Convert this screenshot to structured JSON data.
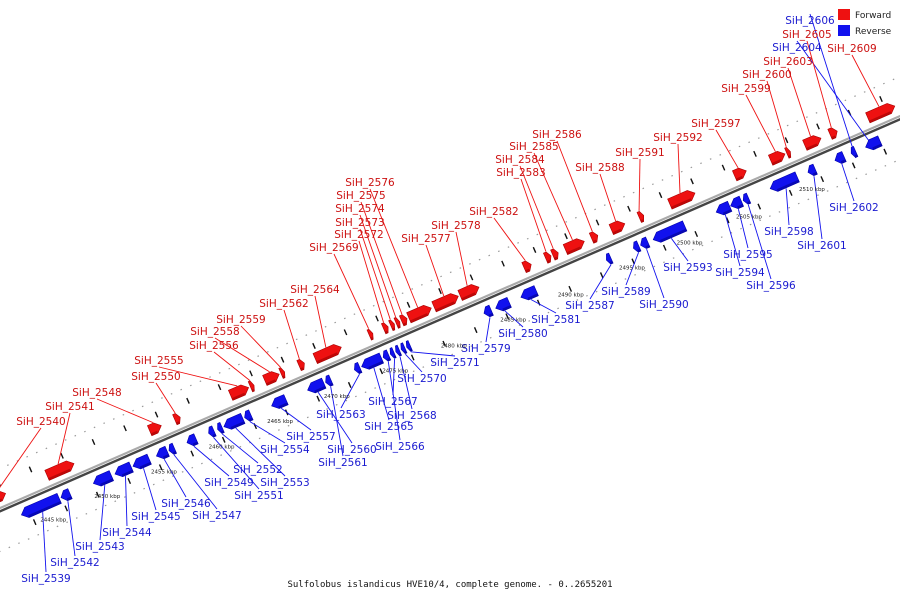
{
  "caption": "Sulfolobus islandicus HVE10/4, complete genome. - 0..2655201",
  "legend": [
    {
      "label": "Forward",
      "color": "#ee1111"
    },
    {
      "label": "Reverse",
      "color": "#1111ee"
    }
  ],
  "colors": {
    "forward": "#ee1111",
    "reverse": "#1111ee",
    "axis": "#777777"
  },
  "kbp_ticks": [
    {
      "label": "2445 kbp",
      "t": 0.045
    },
    {
      "label": "2450 kbp",
      "t": 0.105
    },
    {
      "label": "2455 kbp",
      "t": 0.168
    },
    {
      "label": "2460 kbp",
      "t": 0.232
    },
    {
      "label": "2465 kbp",
      "t": 0.297
    },
    {
      "label": "2470 kbp",
      "t": 0.36
    },
    {
      "label": "2475 kbp",
      "t": 0.425
    },
    {
      "label": "2480 kbp",
      "t": 0.49
    },
    {
      "label": "2485 kbp",
      "t": 0.556
    },
    {
      "label": "2490 kbp",
      "t": 0.62
    },
    {
      "label": "2495 kbp",
      "t": 0.688
    },
    {
      "label": "2500 kbp",
      "t": 0.752
    },
    {
      "label": "2505 kbp",
      "t": 0.818
    },
    {
      "label": "2510 kbp",
      "t": 0.888
    }
  ],
  "genes": [
    {
      "name": "SiH_2539",
      "strand": "reverse",
      "t1": 0.018,
      "t2": 0.06
    },
    {
      "name": "SiH_2540",
      "strand": "forward",
      "t1": 0.0,
      "t2": 0.012
    },
    {
      "name": "SiH_2541",
      "strand": "forward",
      "t1": 0.058,
      "t2": 0.088
    },
    {
      "name": "SiH_2542",
      "strand": "reverse",
      "t1": 0.062,
      "t2": 0.072
    },
    {
      "name": "SiH_2543",
      "strand": "reverse",
      "t1": 0.098,
      "t2": 0.118
    },
    {
      "name": "SiH_2544",
      "strand": "reverse",
      "t1": 0.122,
      "t2": 0.14
    },
    {
      "name": "SiH_2545",
      "strand": "reverse",
      "t1": 0.142,
      "t2": 0.16
    },
    {
      "name": "SiH_2546",
      "strand": "reverse",
      "t1": 0.168,
      "t2": 0.18
    },
    {
      "name": "SiH_2547",
      "strand": "reverse",
      "t1": 0.182,
      "t2": 0.188
    },
    {
      "name": "SiH_2548",
      "strand": "forward",
      "t1": 0.172,
      "t2": 0.185
    },
    {
      "name": "SiH_2549",
      "strand": "reverse",
      "t1": 0.202,
      "t2": 0.212
    },
    {
      "name": "SiH_2550",
      "strand": "forward",
      "t1": 0.2,
      "t2": 0.206
    },
    {
      "name": "SiH_2551",
      "strand": "reverse",
      "t1": 0.226,
      "t2": 0.232
    },
    {
      "name": "SiH_2552",
      "strand": "reverse",
      "t1": 0.236,
      "t2": 0.241
    },
    {
      "name": "SiH_2553",
      "strand": "reverse",
      "t1": 0.243,
      "t2": 0.264
    },
    {
      "name": "SiH_2554",
      "strand": "reverse",
      "t1": 0.266,
      "t2": 0.273
    },
    {
      "name": "SiH_2555",
      "strand": "forward",
      "t1": 0.262,
      "t2": 0.282
    },
    {
      "name": "SiH_2556",
      "strand": "forward",
      "t1": 0.284,
      "t2": 0.288
    },
    {
      "name": "SiH_2557",
      "strand": "reverse",
      "t1": 0.296,
      "t2": 0.312
    },
    {
      "name": "SiH_2558",
      "strand": "forward",
      "t1": 0.3,
      "t2": 0.316
    },
    {
      "name": "SiH_2559",
      "strand": "forward",
      "t1": 0.318,
      "t2": 0.322
    },
    {
      "name": "SiH_2560",
      "strand": "reverse",
      "t1": 0.336,
      "t2": 0.354
    },
    {
      "name": "SiH_2561",
      "strand": "reverse",
      "t1": 0.356,
      "t2": 0.362
    },
    {
      "name": "SiH_2562",
      "strand": "forward",
      "t1": 0.338,
      "t2": 0.344
    },
    {
      "name": "SiH_2563",
      "strand": "reverse",
      "t1": 0.388,
      "t2": 0.394
    },
    {
      "name": "SiH_2564",
      "strand": "forward",
      "t1": 0.356,
      "t2": 0.385
    },
    {
      "name": "SiH_2565",
      "strand": "reverse",
      "t1": 0.396,
      "t2": 0.418
    },
    {
      "name": "SiH_2566",
      "strand": "reverse",
      "t1": 0.42,
      "t2": 0.426
    },
    {
      "name": "SiH_2567",
      "strand": "reverse",
      "t1": 0.428,
      "t2": 0.432
    },
    {
      "name": "SiH_2568",
      "strand": "reverse",
      "t1": 0.434,
      "t2": 0.438
    },
    {
      "name": "SiH_2569",
      "strand": "forward",
      "t1": 0.416,
      "t2": 0.42
    },
    {
      "name": "SiH_2570",
      "strand": "reverse",
      "t1": 0.44,
      "t2": 0.444
    },
    {
      "name": "SiH_2571",
      "strand": "reverse",
      "t1": 0.446,
      "t2": 0.45
    },
    {
      "name": "SiH_2572",
      "strand": "forward",
      "t1": 0.432,
      "t2": 0.437
    },
    {
      "name": "SiH_2573",
      "strand": "forward",
      "t1": 0.44,
      "t2": 0.444
    },
    {
      "name": "SiH_2574",
      "strand": "forward",
      "t1": 0.446,
      "t2": 0.45
    },
    {
      "name": "SiH_2575",
      "strand": "forward",
      "t1": 0.452,
      "t2": 0.458
    },
    {
      "name": "SiH_2576",
      "strand": "forward",
      "t1": 0.46,
      "t2": 0.485
    },
    {
      "name": "SiH_2577",
      "strand": "forward",
      "t1": 0.488,
      "t2": 0.515
    },
    {
      "name": "SiH_2578",
      "strand": "forward",
      "t1": 0.517,
      "t2": 0.538
    },
    {
      "name": "SiH_2579",
      "strand": "reverse",
      "t1": 0.532,
      "t2": 0.54
    },
    {
      "name": "SiH_2580",
      "strand": "reverse",
      "t1": 0.545,
      "t2": 0.56
    },
    {
      "name": "SiH_2581",
      "strand": "reverse",
      "t1": 0.573,
      "t2": 0.59
    },
    {
      "name": "SiH_2582",
      "strand": "forward",
      "t1": 0.588,
      "t2": 0.596
    },
    {
      "name": "SiH_2583",
      "strand": "forward",
      "t1": 0.612,
      "t2": 0.618
    },
    {
      "name": "SiH_2584",
      "strand": "forward",
      "t1": 0.62,
      "t2": 0.626
    },
    {
      "name": "SiH_2585",
      "strand": "forward",
      "t1": 0.634,
      "t2": 0.655
    },
    {
      "name": "SiH_2586",
      "strand": "forward",
      "t1": 0.663,
      "t2": 0.67
    },
    {
      "name": "SiH_2587",
      "strand": "reverse",
      "t1": 0.668,
      "t2": 0.673
    },
    {
      "name": "SiH_2588",
      "strand": "forward",
      "t1": 0.685,
      "t2": 0.7
    },
    {
      "name": "SiH_2589",
      "strand": "reverse",
      "t1": 0.698,
      "t2": 0.704
    },
    {
      "name": "SiH_2590",
      "strand": "reverse",
      "t1": 0.706,
      "t2": 0.714
    },
    {
      "name": "SiH_2591",
      "strand": "forward",
      "t1": 0.716,
      "t2": 0.721
    },
    {
      "name": "SiH_2592",
      "strand": "forward",
      "t1": 0.75,
      "t2": 0.778
    },
    {
      "name": "SiH_2593",
      "strand": "reverse",
      "t1": 0.72,
      "t2": 0.755
    },
    {
      "name": "SiH_2594",
      "strand": "reverse",
      "t1": 0.79,
      "t2": 0.805
    },
    {
      "name": "SiH_2595",
      "strand": "reverse",
      "t1": 0.806,
      "t2": 0.818
    },
    {
      "name": "SiH_2596",
      "strand": "reverse",
      "t1": 0.82,
      "t2": 0.826
    },
    {
      "name": "SiH_2597",
      "strand": "forward",
      "t1": 0.822,
      "t2": 0.835
    },
    {
      "name": "SiH_2598",
      "strand": "reverse",
      "t1": 0.85,
      "t2": 0.88
    },
    {
      "name": "SiH_2599",
      "strand": "forward",
      "t1": 0.862,
      "t2": 0.878
    },
    {
      "name": "SiH_2600",
      "strand": "forward",
      "t1": 0.88,
      "t2": 0.884
    },
    {
      "name": "SiH_2601",
      "strand": "reverse",
      "t1": 0.892,
      "t2": 0.9
    },
    {
      "name": "SiH_2602",
      "strand": "reverse",
      "t1": 0.922,
      "t2": 0.932
    },
    {
      "name": "SiH_2603",
      "strand": "forward",
      "t1": 0.9,
      "t2": 0.918
    },
    {
      "name": "SiH_2604",
      "strand": "reverse",
      "t1": 0.956,
      "t2": 0.972
    },
    {
      "name": "SiH_2605",
      "strand": "forward",
      "t1": 0.928,
      "t2": 0.936
    },
    {
      "name": "SiH_2606",
      "strand": "reverse",
      "t1": 0.94,
      "t2": 0.945
    },
    {
      "name": "SiH_2609",
      "strand": "forward",
      "t1": 0.97,
      "t2": 1.0
    }
  ]
}
